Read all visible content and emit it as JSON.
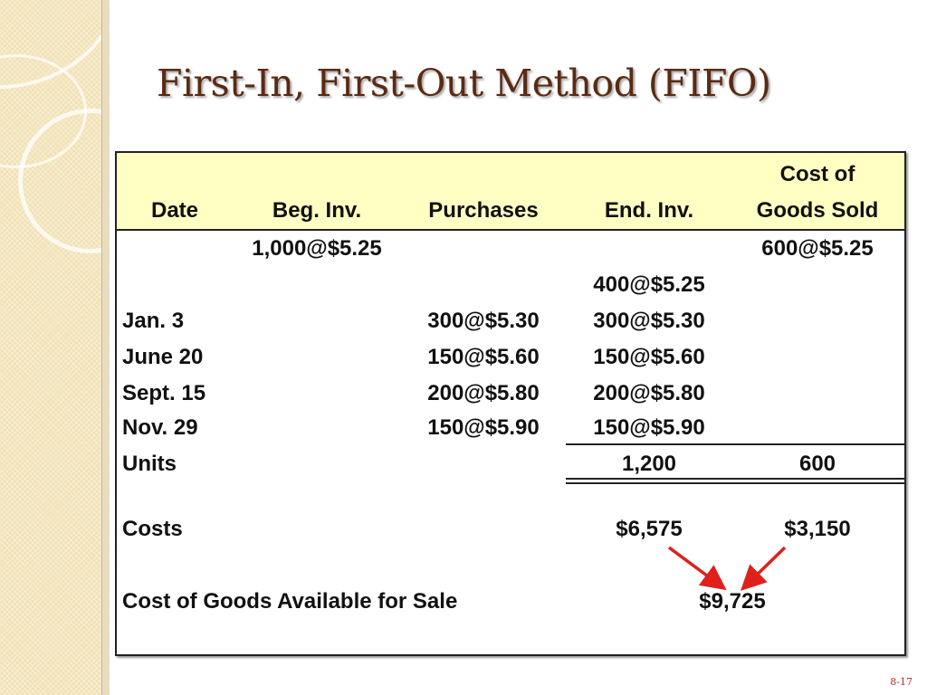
{
  "slide": {
    "title": "First-In, First-Out Method (FIFO)",
    "page_number": "8-17"
  },
  "table": {
    "headers": {
      "date": "Date",
      "beg_inv": "Beg. Inv.",
      "purchases": "Purchases",
      "end_inv": "End. Inv.",
      "cogs_line1": "Cost of",
      "cogs_line2": "Goods Sold"
    },
    "rows": [
      {
        "date": "",
        "beg_inv": "1,000@$5.25",
        "purchases": "",
        "end_inv": "",
        "cogs": "600@$5.25"
      },
      {
        "date": "",
        "beg_inv": "",
        "purchases": "",
        "end_inv": "400@$5.25",
        "cogs": ""
      },
      {
        "date": "Jan. 3",
        "beg_inv": "",
        "purchases": "300@$5.30",
        "end_inv": "300@$5.30",
        "cogs": ""
      },
      {
        "date": "June 20",
        "beg_inv": "",
        "purchases": "150@$5.60",
        "end_inv": "150@$5.60",
        "cogs": ""
      },
      {
        "date": "Sept. 15",
        "beg_inv": "",
        "purchases": "200@$5.80",
        "end_inv": "200@$5.80",
        "cogs": ""
      },
      {
        "date": "Nov. 29",
        "beg_inv": "",
        "purchases": "150@$5.90",
        "end_inv": "150@$5.90",
        "cogs": ""
      }
    ],
    "units": {
      "label": "Units",
      "end_inv": "1,200",
      "cogs": "600"
    },
    "costs": {
      "label": "Costs",
      "end_inv": "$6,575",
      "cogs": "$3,150"
    },
    "available": {
      "label": "Cost of Goods Available for Sale",
      "value": "$9,725"
    }
  },
  "colors": {
    "header_bg": "#ffffc4",
    "title": "#5a2a12",
    "arrow": "#e0201c"
  }
}
